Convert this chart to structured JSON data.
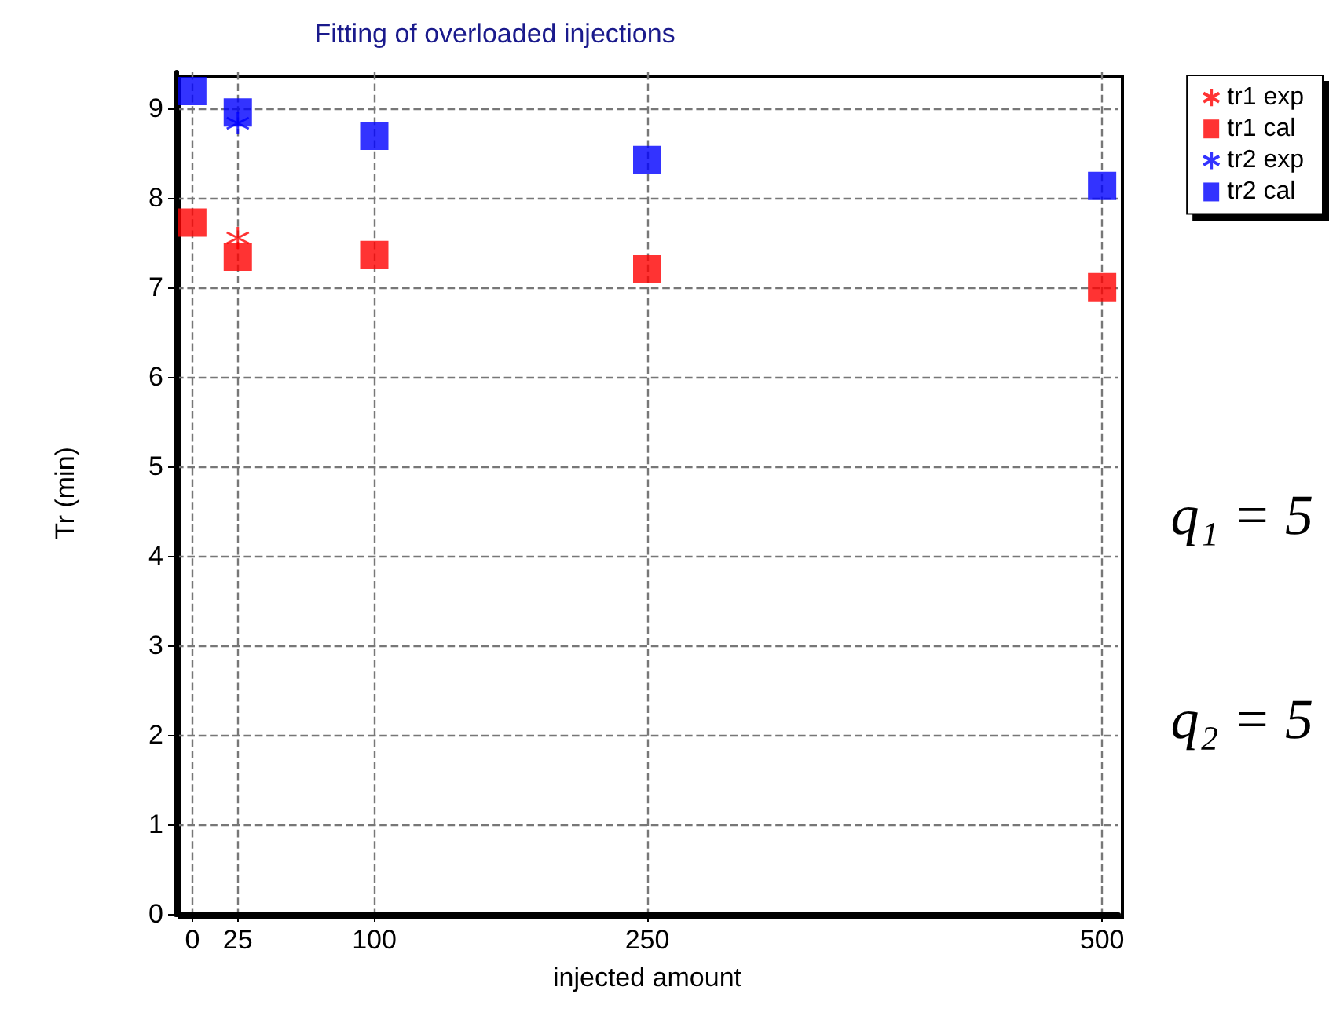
{
  "chart_data": {
    "type": "scatter",
    "title": "Fitting of overloaded injections",
    "xlabel": "injected amount",
    "ylabel": "Tr (min)",
    "x": [
      0,
      25,
      100,
      250,
      500
    ],
    "series": [
      {
        "name": "tr1 exp",
        "color": "#ff0000",
        "marker": "cross",
        "values": [
          null,
          7.55,
          null,
          null,
          null
        ]
      },
      {
        "name": "tr1 cal",
        "color": "#ff0000",
        "marker": "square",
        "values": [
          7.72,
          7.34,
          7.36,
          7.2,
          7.0
        ]
      },
      {
        "name": "tr2 exp",
        "color": "#0000ff",
        "marker": "cross",
        "values": [
          null,
          8.83,
          null,
          null,
          null
        ]
      },
      {
        "name": "tr2 cal",
        "color": "#0000ff",
        "marker": "square",
        "values": [
          9.19,
          8.95,
          8.69,
          8.42,
          8.13
        ]
      }
    ],
    "xlim": [
      -9,
      509
    ],
    "xticks": [
      0,
      25,
      100,
      250,
      500
    ],
    "ylim": [
      0,
      9.4
    ],
    "yticks": [
      0,
      1,
      2,
      3,
      4,
      5,
      6,
      7,
      8,
      9
    ],
    "grid": true,
    "legend": "top right",
    "annotations": [
      "q₁ = 5",
      "q₂ = 5"
    ]
  }
}
